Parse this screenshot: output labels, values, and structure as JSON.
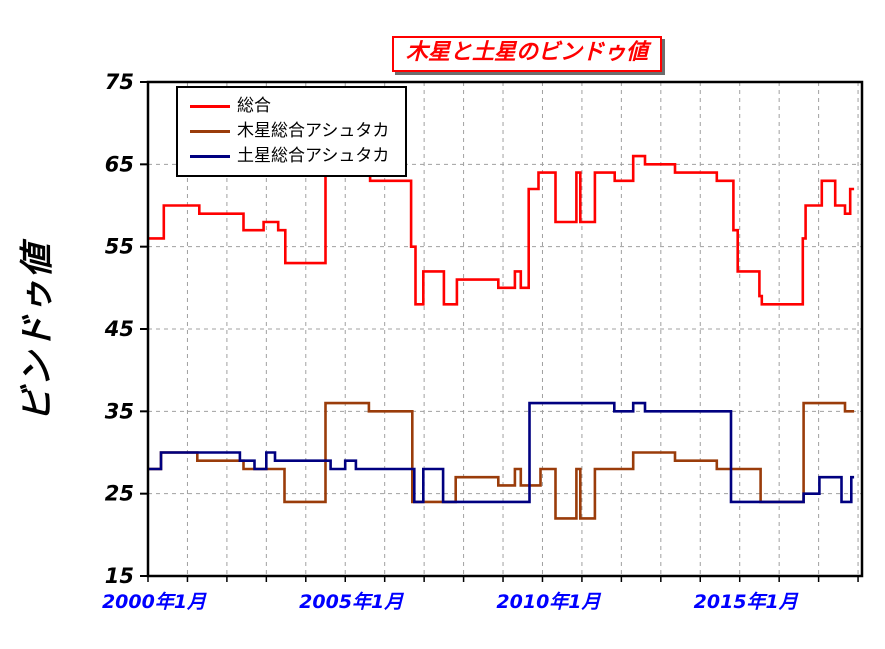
{
  "chart_data": {
    "type": "line",
    "title": "木星と土星のビンドゥ値",
    "y_axis_title": "ビンドゥ値",
    "x_range": [
      2000,
      2018.1
    ],
    "y_range": [
      15,
      75
    ],
    "y_ticks": [
      15,
      25,
      35,
      45,
      55,
      65,
      75
    ],
    "x_minor_tick_step_years": 1,
    "grid": {
      "visible": true,
      "style": "dashed",
      "color": "#a0a0a0",
      "horizontal_at": [
        25,
        35,
        45,
        55,
        65
      ],
      "vertical": "every year 2001-2017"
    },
    "legend_position": "top-left-inside",
    "x_ticks": [
      {
        "x": 2000,
        "label": "2000年1月"
      },
      {
        "x": 2005,
        "label": "2005年1月"
      },
      {
        "x": 2010,
        "label": "2010年1月"
      },
      {
        "x": 2015,
        "label": "2015年1月"
      }
    ],
    "x_label_color": "#0000ff",
    "y_label_color": "#000000",
    "axis_color": "#000000",
    "title_color": "#ff0000",
    "x_unit": "decimal_year (estimated monthly steps)",
    "series": [
      {
        "name": "総合",
        "color": "#ff0000",
        "interpolation": "step-after",
        "points": [
          [
            2000.0,
            56
          ],
          [
            2000.4,
            60
          ],
          [
            2001.3,
            59
          ],
          [
            2002.42,
            57
          ],
          [
            2002.93,
            58
          ],
          [
            2003.3,
            57
          ],
          [
            2003.48,
            53
          ],
          [
            2004.5,
            65
          ],
          [
            2004.85,
            64
          ],
          [
            2005.05,
            66
          ],
          [
            2005.63,
            63
          ],
          [
            2006.67,
            55
          ],
          [
            2006.78,
            48
          ],
          [
            2006.98,
            52
          ],
          [
            2007.5,
            48
          ],
          [
            2007.83,
            51
          ],
          [
            2008.88,
            50
          ],
          [
            2009.3,
            52
          ],
          [
            2009.45,
            50
          ],
          [
            2009.65,
            62
          ],
          [
            2009.9,
            64
          ],
          [
            2010.33,
            58
          ],
          [
            2010.86,
            64
          ],
          [
            2010.96,
            58
          ],
          [
            2011.33,
            64
          ],
          [
            2011.83,
            63
          ],
          [
            2012.3,
            66
          ],
          [
            2012.6,
            65
          ],
          [
            2013.36,
            64
          ],
          [
            2014.42,
            63
          ],
          [
            2014.84,
            57
          ],
          [
            2014.95,
            52
          ],
          [
            2015.5,
            49
          ],
          [
            2015.56,
            48
          ],
          [
            2016.6,
            56
          ],
          [
            2016.67,
            60
          ],
          [
            2017.08,
            63
          ],
          [
            2017.42,
            60
          ],
          [
            2017.67,
            59
          ],
          [
            2017.8,
            62
          ],
          [
            2017.9,
            62
          ]
        ]
      },
      {
        "name": "木星総合アシュタカ",
        "color": "#9a3c0a",
        "interpolation": "step-after",
        "points": [
          [
            2000.0,
            28
          ],
          [
            2000.33,
            30
          ],
          [
            2001.25,
            29
          ],
          [
            2002.42,
            28
          ],
          [
            2003.46,
            24
          ],
          [
            2004.5,
            36
          ],
          [
            2005.6,
            35
          ],
          [
            2006.7,
            24
          ],
          [
            2007.8,
            27
          ],
          [
            2008.88,
            26
          ],
          [
            2009.3,
            28
          ],
          [
            2009.45,
            26
          ],
          [
            2009.95,
            28
          ],
          [
            2010.33,
            22
          ],
          [
            2010.86,
            28
          ],
          [
            2010.96,
            22
          ],
          [
            2011.33,
            28
          ],
          [
            2012.3,
            30
          ],
          [
            2013.36,
            29
          ],
          [
            2014.42,
            28
          ],
          [
            2015.53,
            24
          ],
          [
            2016.62,
            36
          ],
          [
            2017.67,
            35
          ],
          [
            2017.9,
            35
          ]
        ]
      },
      {
        "name": "土星総合アシュタカ",
        "color": "#000080",
        "interpolation": "step-after",
        "points": [
          [
            2000.0,
            28
          ],
          [
            2000.33,
            30
          ],
          [
            2002.33,
            29
          ],
          [
            2002.7,
            28
          ],
          [
            2003.0,
            30
          ],
          [
            2003.22,
            29
          ],
          [
            2004.63,
            28
          ],
          [
            2005.0,
            29
          ],
          [
            2005.27,
            28
          ],
          [
            2006.75,
            24
          ],
          [
            2006.98,
            28
          ],
          [
            2007.48,
            24
          ],
          [
            2009.67,
            36
          ],
          [
            2011.82,
            35
          ],
          [
            2012.3,
            36
          ],
          [
            2012.6,
            35
          ],
          [
            2014.78,
            24
          ],
          [
            2016.62,
            25
          ],
          [
            2017.02,
            27
          ],
          [
            2017.58,
            24
          ],
          [
            2017.83,
            27
          ],
          [
            2017.9,
            27
          ]
        ]
      }
    ]
  }
}
